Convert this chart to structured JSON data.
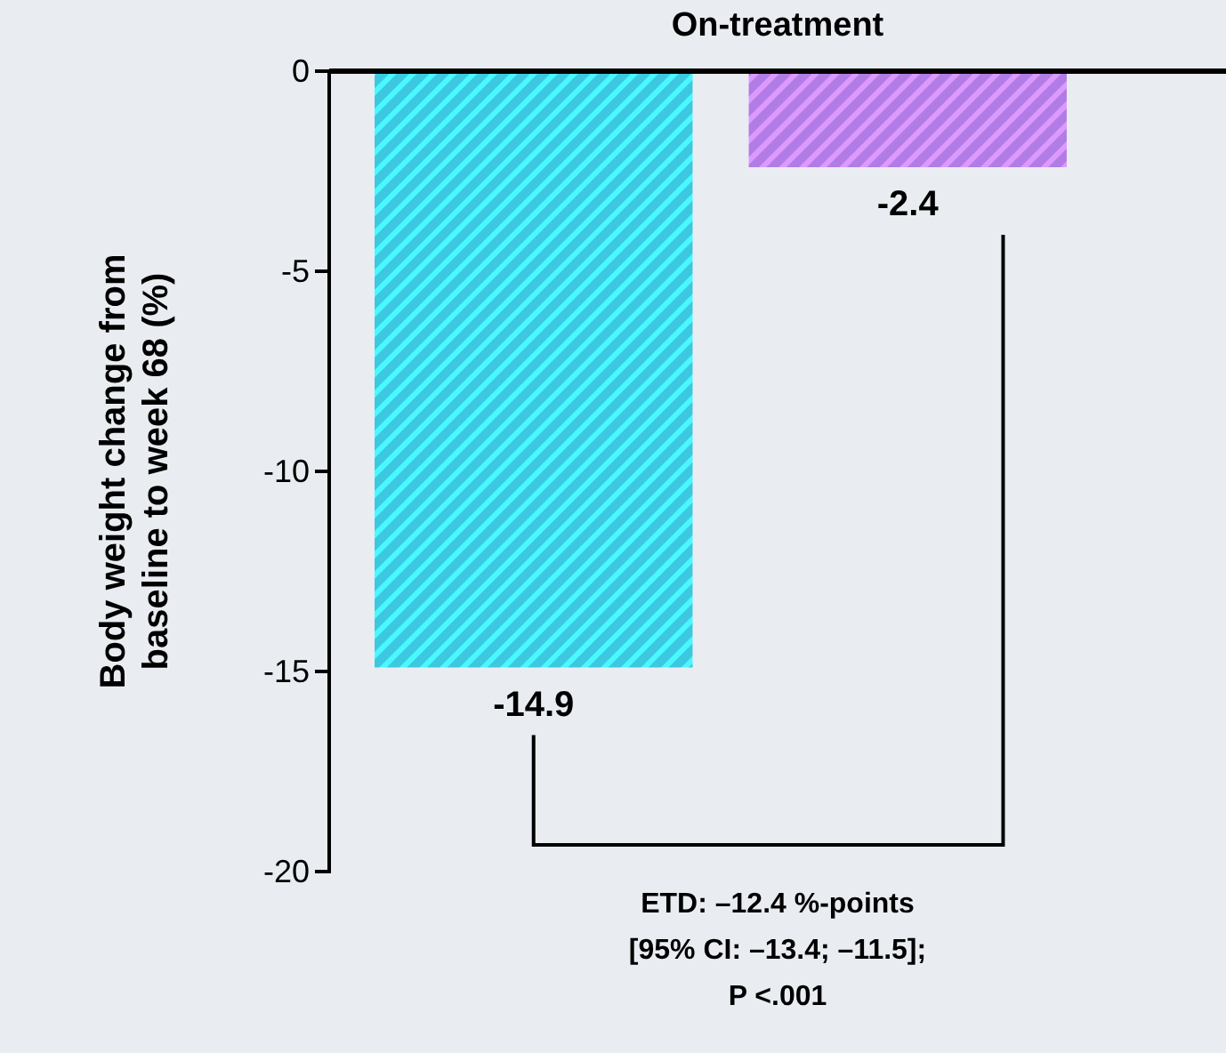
{
  "chart_data": {
    "type": "bar",
    "title": "On-treatment",
    "ylabel": "Body weight change from\nbaseline to week 68 (%)",
    "categories": [
      null,
      null
    ],
    "values": [
      -14.9,
      -2.4
    ],
    "colors": [
      "#3cc8e0",
      "#b27ce6"
    ],
    "data_labels": true,
    "ylim": [
      -20,
      0
    ],
    "yticks": [
      0,
      -5,
      -10,
      -15,
      -20
    ],
    "grid": false,
    "annotations": [
      "ETD: –12.4 %-points",
      "[95% CI: –13.4; –11.5];",
      "P <.001"
    ]
  }
}
